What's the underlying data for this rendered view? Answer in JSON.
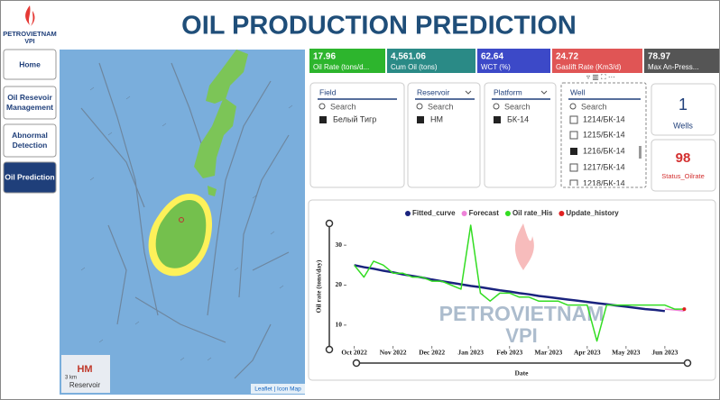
{
  "header": {
    "logo": "PETROVIETNAM",
    "logo_sub": "VPI",
    "title": "OIL PRODUCTION PREDICTION"
  },
  "nav": [
    "Home",
    "Oil Resevoir Management",
    "Abnormal Detection",
    "Oil Prediction"
  ],
  "kpis": [
    {
      "value": "17.96",
      "label": "Oil Rate (tons/d..."
    },
    {
      "value": "4,561.06",
      "label": "Cum Oil (tons)"
    },
    {
      "value": "62.64",
      "label": "WCT (%)"
    },
    {
      "value": "24.72",
      "label": "Gaslift Rate (Km3/d)"
    },
    {
      "value": "78.97",
      "label": "Max An-Press..."
    }
  ],
  "filters": [
    {
      "title": "Field",
      "search": "Search",
      "items": [
        "Белый Тигр"
      ]
    },
    {
      "title": "Reservoir",
      "search": "Search",
      "items": [
        "HM"
      ]
    },
    {
      "title": "Platform",
      "search": "Search",
      "items": [
        "БК-14"
      ]
    },
    {
      "title": "Well",
      "search": "Search",
      "items": [
        "1214/БК-14",
        "1215/БК-14",
        "1216/БК-14",
        "1217/БК-14",
        "1218/БК-14"
      ]
    }
  ],
  "cards": [
    {
      "value": "1",
      "label": "Wells"
    },
    {
      "value": "98",
      "label": "Status_Oilrate"
    }
  ],
  "map": {
    "label": "HM",
    "sublabel": "Reservoir",
    "scale": "3 km",
    "attribution": "Leaflet | Icon Map"
  },
  "chart": {
    "type": "line",
    "ylabel": "Oil rate (tons/day)",
    "xlabel": "Date",
    "watermark": {
      "name": "PETROVIETNAM",
      "sub": "VPI"
    },
    "xlim": [
      -0.2,
      8.7
    ],
    "xticks": [
      {
        "value": 0,
        "label": "Oct 2022"
      },
      {
        "value": 1,
        "label": "Nov 2022"
      },
      {
        "value": 2,
        "label": "Dec 2022"
      },
      {
        "value": 3,
        "label": "Jan 2023"
      },
      {
        "value": 4,
        "label": "Feb 2023"
      },
      {
        "value": 5,
        "label": "Mar 2023"
      },
      {
        "value": 6,
        "label": "Apr 2023"
      },
      {
        "value": 7,
        "label": "May 2023"
      },
      {
        "value": 8,
        "label": "Jun 2023"
      }
    ],
    "ylim": [
      5,
      35
    ],
    "yticks": [
      10,
      20,
      30
    ],
    "x": [
      0,
      0.25,
      0.5,
      0.75,
      1,
      1.25,
      1.5,
      1.75,
      2,
      2.25,
      2.5,
      2.75,
      3,
      3.25,
      3.5,
      3.75,
      4,
      4.25,
      4.5,
      4.75,
      5,
      5.25,
      5.5,
      5.75,
      6,
      6.25,
      6.5,
      6.75,
      7,
      7.25,
      7.5,
      7.75,
      8,
      8.25,
      8.5
    ],
    "series": [
      {
        "name": "Fitted_curve",
        "color": "#1a237e",
        "values": [
          25,
          24.5,
          24.1,
          23.6,
          23.2,
          22.7,
          22.3,
          21.9,
          21.4,
          21,
          20.6,
          20.2,
          19.8,
          19.5,
          19.1,
          18.7,
          18.4,
          18,
          17.7,
          17.3,
          17,
          16.7,
          16.4,
          16.1,
          15.8,
          15.5,
          15.2,
          14.9,
          14.6,
          14.3,
          14,
          13.8,
          13.5,
          null,
          null
        ]
      },
      {
        "name": "Forecast",
        "color": "#ee82d8",
        "values": [
          null,
          null,
          null,
          null,
          null,
          null,
          null,
          null,
          null,
          null,
          null,
          null,
          null,
          null,
          null,
          null,
          null,
          null,
          null,
          null,
          null,
          null,
          null,
          null,
          null,
          null,
          null,
          null,
          null,
          null,
          null,
          null,
          14,
          13.8,
          13.5
        ]
      },
      {
        "name": "Oil rate_His",
        "color": "#33dd22",
        "values": [
          25,
          22,
          26,
          25,
          23,
          23,
          22,
          22,
          21,
          21,
          20,
          19,
          35,
          18,
          16,
          18,
          18,
          17,
          17,
          16,
          16,
          16,
          15,
          15,
          15,
          6,
          15,
          15,
          15,
          15,
          15,
          15,
          15,
          14,
          14
        ]
      },
      {
        "name": "Update_history",
        "color": "#e02020",
        "values": [
          null,
          null,
          null,
          null,
          null,
          null,
          null,
          null,
          null,
          null,
          null,
          null,
          null,
          null,
          null,
          null,
          null,
          null,
          null,
          null,
          null,
          null,
          null,
          null,
          null,
          null,
          null,
          null,
          null,
          null,
          null,
          null,
          null,
          null,
          14
        ]
      }
    ]
  }
}
